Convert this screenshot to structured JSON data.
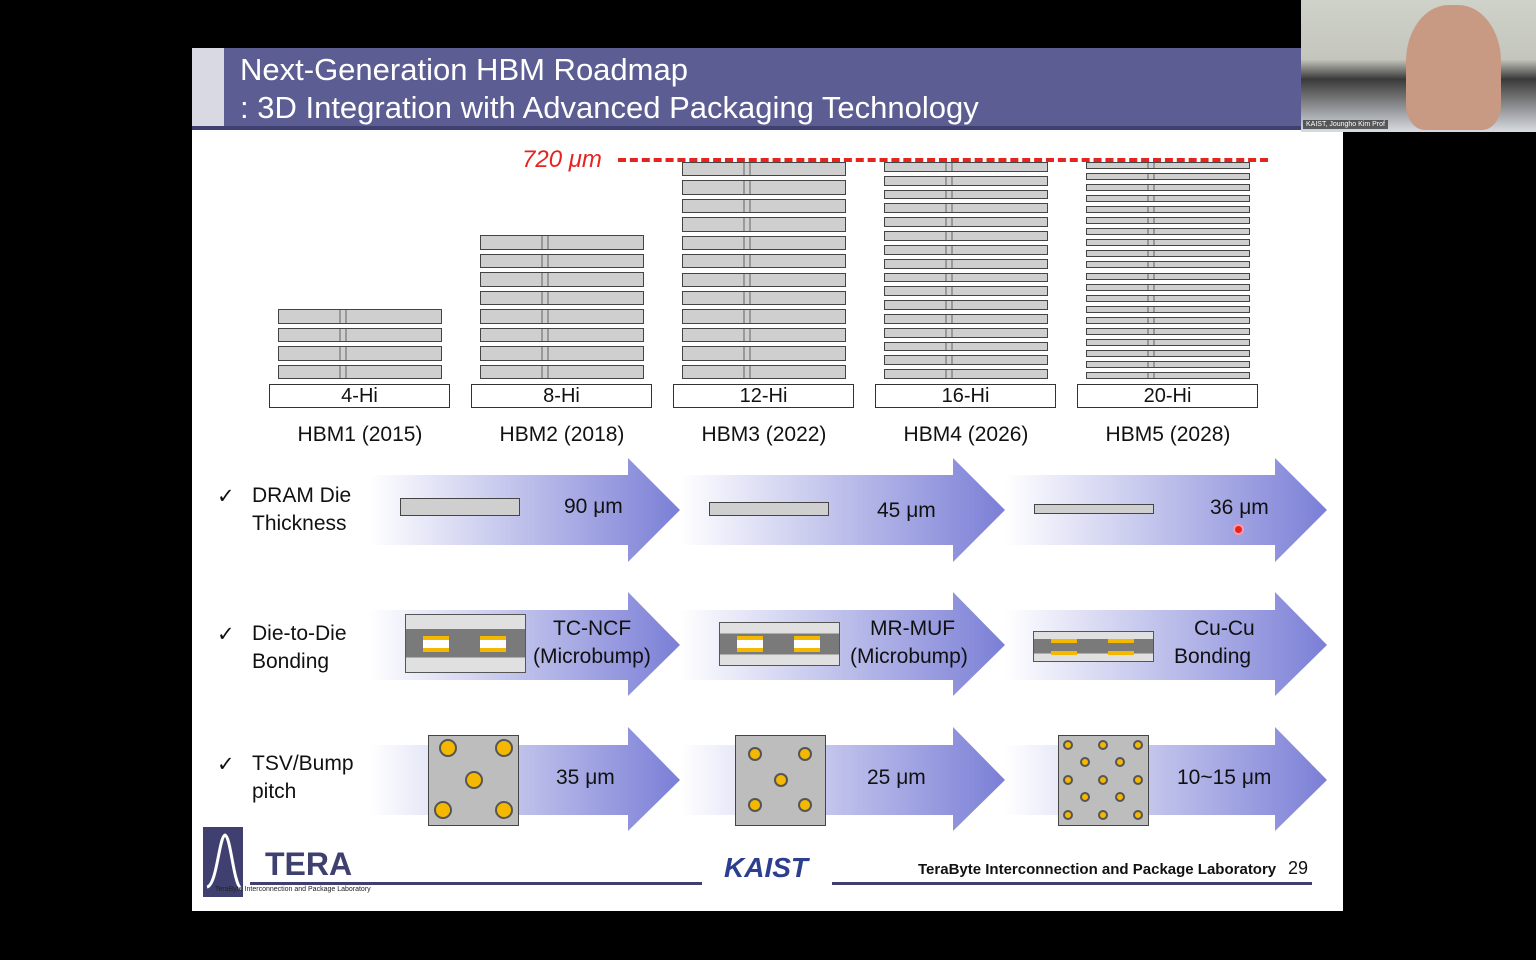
{
  "slide": {
    "title_line1": "Next-Generation HBM Roadmap",
    "title_line2": ": 3D Integration with Advanced Packaging Technology",
    "height_limit": "720 μm",
    "stacks": [
      {
        "label": "4-Hi",
        "gen": "HBM1 (2015)",
        "dies": 4
      },
      {
        "label": "8-Hi",
        "gen": "HBM2 (2018)",
        "dies": 8
      },
      {
        "label": "12-Hi",
        "gen": "HBM3 (2022)",
        "dies": 12
      },
      {
        "label": "16-Hi",
        "gen": "HBM4 (2026)",
        "dies": 16
      },
      {
        "label": "20-Hi",
        "gen": "HBM5 (2028)",
        "dies": 20
      }
    ],
    "check": "✓",
    "rows": [
      {
        "label1": "DRAM Die",
        "label2": "Thickness",
        "items": [
          {
            "a": "90 μm",
            "b": ""
          },
          {
            "a": "45 μm",
            "b": ""
          },
          {
            "a": "36 μm",
            "b": ""
          }
        ]
      },
      {
        "label1": "Die-to-Die",
        "label2": "Bonding",
        "items": [
          {
            "a": "TC-NCF",
            "b": "(Microbump)"
          },
          {
            "a": "MR-MUF",
            "b": "(Microbump)"
          },
          {
            "a": "Cu-Cu",
            "b": "Bonding"
          }
        ]
      },
      {
        "label1": "TSV/Bump",
        "label2": "pitch",
        "items": [
          {
            "a": "35 μm",
            "b": ""
          },
          {
            "a": "25 μm",
            "b": ""
          },
          {
            "a": "10~15 μm",
            "b": ""
          }
        ]
      }
    ],
    "footer": {
      "logo_text": "TERA",
      "logo_sub": "TeraByte Interconnection and Package Laboratory",
      "kaist": "KAIST",
      "lab": "TeraByte Interconnection and Package Laboratory",
      "page": "29"
    }
  },
  "webcam": {
    "name": "KAIST, Joungho Kim Prof"
  },
  "colors": {
    "title_bar": "#5c5d92",
    "arrow": "#7b7fd6",
    "limit_line": "#e52420",
    "bump": "#f5b800"
  }
}
